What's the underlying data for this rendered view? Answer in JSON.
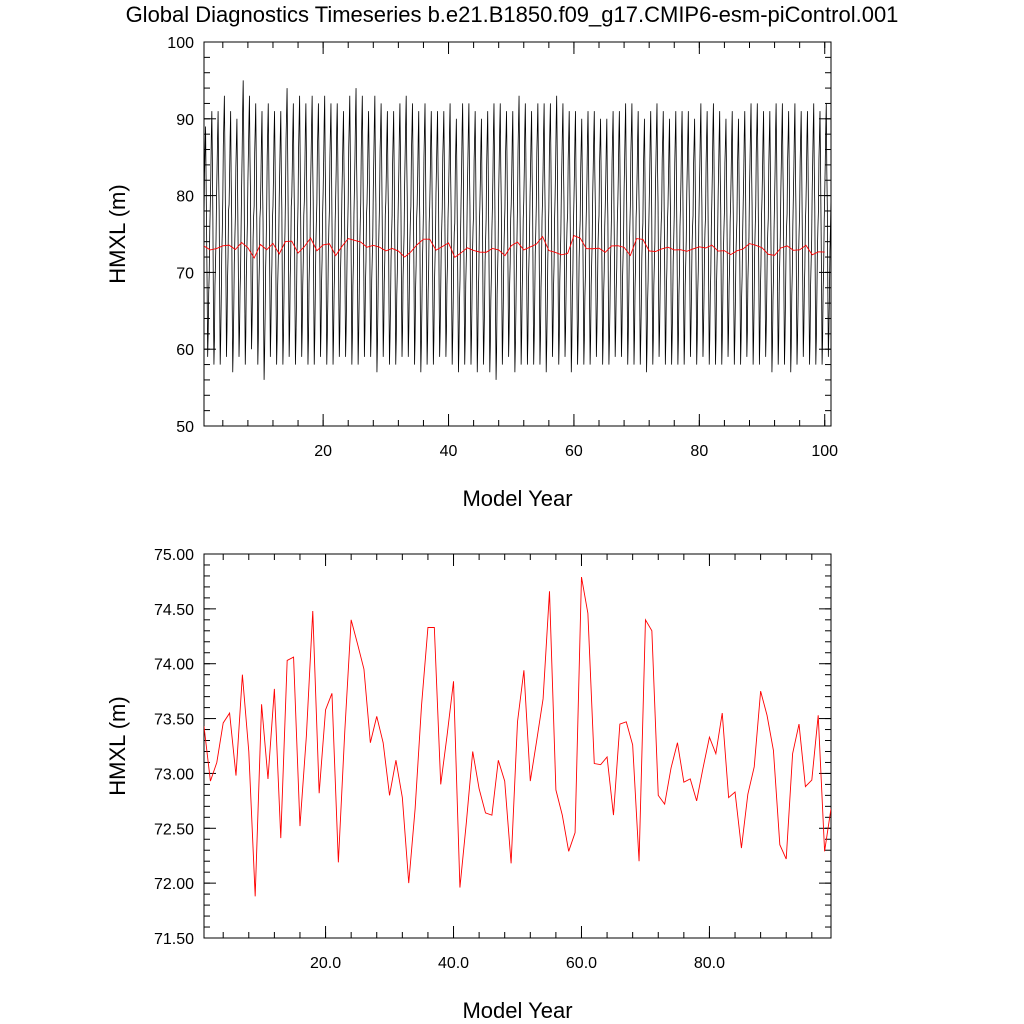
{
  "title": "Global Diagnostics Timeseries b.e21.B1850.f09_g17.CMIP6-esm-piControl.001",
  "colors": {
    "monthly": "#000000",
    "annual": "#ff0000"
  },
  "chart_data": [
    {
      "type": "line",
      "name": "monthly-and-annual-hmxl",
      "xlabel": "Model Year",
      "ylabel": "HMXL (m)",
      "xlim": [
        1,
        101
      ],
      "ylim": [
        50,
        100
      ],
      "xticks": [
        20,
        40,
        60,
        80,
        100
      ],
      "xtick_labels": [
        "20",
        "40",
        "60",
        "80",
        "100"
      ],
      "yticks": [
        50,
        60,
        70,
        80,
        90,
        100
      ],
      "ytick_labels": [
        "50",
        "60",
        "70",
        "80",
        "90",
        "100"
      ],
      "series": [
        {
          "role": "monthly",
          "x_start": 1.0,
          "x_step": 0.08333,
          "annual_max": [
            89,
            91,
            91,
            93,
            91,
            90,
            95,
            93,
            92,
            91,
            92,
            91,
            91,
            94,
            92,
            93,
            92,
            93,
            92,
            93,
            92,
            92,
            91,
            93,
            94,
            93,
            91,
            93,
            92,
            91,
            91,
            92,
            93,
            92,
            91,
            92,
            91,
            91,
            91,
            92,
            90,
            92,
            92,
            91,
            90,
            91,
            92,
            92,
            91,
            91,
            93,
            92,
            91,
            92,
            92,
            92,
            93,
            92,
            91,
            91,
            90,
            91,
            91,
            90,
            90,
            91,
            91,
            92,
            92,
            91,
            90,
            91,
            92,
            91,
            90,
            91,
            91,
            91,
            90,
            92,
            91,
            92,
            91,
            90,
            91,
            90,
            91,
            92,
            92,
            91,
            91,
            92,
            92,
            91,
            92,
            91,
            91,
            92,
            91,
            92,
            94
          ],
          "annual_min": [
            59,
            58,
            58,
            59,
            57,
            59,
            58,
            60,
            58,
            56,
            59,
            58,
            58,
            59,
            58,
            59,
            58,
            58,
            59,
            58,
            58,
            59,
            59,
            58,
            58,
            59,
            59,
            57,
            59,
            58,
            58,
            59,
            59,
            58,
            57,
            58,
            58,
            59,
            59,
            58,
            57,
            58,
            58,
            57,
            58,
            57,
            56,
            58,
            59,
            57,
            58,
            58,
            58,
            58,
            57,
            59,
            58,
            59,
            57,
            58,
            58,
            58,
            59,
            58,
            58,
            59,
            59,
            58,
            58,
            58,
            57,
            58,
            59,
            58,
            58,
            58,
            58,
            59,
            58,
            59,
            58,
            58,
            58,
            59,
            58,
            58,
            59,
            58,
            58,
            59,
            57,
            58,
            58,
            57,
            58,
            59,
            58,
            58,
            58,
            59,
            59
          ]
        },
        {
          "role": "annual",
          "x": [
            1,
            2,
            3,
            4,
            5,
            6,
            7,
            8,
            9,
            10,
            11,
            12,
            13,
            14,
            15,
            16,
            17,
            18,
            19,
            20,
            21,
            22,
            23,
            24,
            25,
            26,
            27,
            28,
            29,
            30,
            31,
            32,
            33,
            34,
            35,
            36,
            37,
            38,
            39,
            40,
            41,
            42,
            43,
            44,
            45,
            46,
            47,
            48,
            49,
            50,
            51,
            52,
            53,
            54,
            55,
            56,
            57,
            58,
            59,
            60,
            61,
            62,
            63,
            64,
            65,
            66,
            67,
            68,
            69,
            70,
            71,
            72,
            73,
            74,
            75,
            76,
            77,
            78,
            79,
            80,
            81,
            82,
            83,
            84,
            85,
            86,
            87,
            88,
            89,
            90,
            91,
            92,
            93,
            94,
            95,
            96,
            97,
            98,
            99,
            100
          ],
          "values": [
            73.43,
            72.93,
            73.1,
            73.46,
            73.55,
            72.98,
            73.9,
            73.2,
            71.88,
            73.63,
            72.95,
            73.77,
            72.41,
            74.03,
            74.06,
            72.52,
            73.34,
            74.48,
            72.82,
            73.58,
            73.73,
            72.19,
            73.38,
            74.4,
            74.18,
            73.95,
            73.28,
            73.52,
            73.28,
            72.8,
            73.12,
            72.78,
            72.0,
            72.68,
            73.62,
            74.33,
            74.33,
            72.9,
            73.35,
            73.84,
            71.96,
            72.55,
            73.2,
            72.86,
            72.64,
            72.62,
            73.12,
            72.93,
            72.18,
            73.47,
            73.94,
            72.93,
            73.3,
            73.68,
            74.66,
            72.85,
            72.62,
            72.29,
            72.46,
            74.79,
            74.46,
            73.09,
            73.08,
            73.15,
            72.62,
            73.45,
            73.47,
            73.26,
            72.2,
            74.4,
            74.3,
            72.8,
            72.72,
            73.05,
            73.28,
            72.92,
            72.95,
            72.75,
            73.05,
            73.33,
            73.18,
            73.55,
            72.78,
            72.83,
            72.32,
            72.81,
            73.06,
            73.75,
            73.53,
            73.21,
            72.35,
            72.22,
            73.18,
            73.45,
            72.88,
            72.94,
            73.53,
            72.29,
            72.68,
            72.65
          ]
        }
      ]
    },
    {
      "type": "line",
      "name": "annual-hmxl",
      "xlabel": "Model Year",
      "ylabel": "HMXL (m)",
      "xlim": [
        1,
        99
      ],
      "ylim": [
        71.5,
        75.0
      ],
      "xticks": [
        20,
        40,
        60,
        80
      ],
      "xtick_labels": [
        "20.0",
        "40.0",
        "60.0",
        "80.0"
      ],
      "yticks": [
        71.5,
        72.0,
        72.5,
        73.0,
        73.5,
        74.0,
        74.5,
        75.0
      ],
      "ytick_labels": [
        "71.50",
        "72.00",
        "72.50",
        "73.00",
        "73.50",
        "74.00",
        "74.50",
        "75.00"
      ],
      "series": [
        {
          "role": "annual",
          "x": [
            1,
            2,
            3,
            4,
            5,
            6,
            7,
            8,
            9,
            10,
            11,
            12,
            13,
            14,
            15,
            16,
            17,
            18,
            19,
            20,
            21,
            22,
            23,
            24,
            25,
            26,
            27,
            28,
            29,
            30,
            31,
            32,
            33,
            34,
            35,
            36,
            37,
            38,
            39,
            40,
            41,
            42,
            43,
            44,
            45,
            46,
            47,
            48,
            49,
            50,
            51,
            52,
            53,
            54,
            55,
            56,
            57,
            58,
            59,
            60,
            61,
            62,
            63,
            64,
            65,
            66,
            67,
            68,
            69,
            70,
            71,
            72,
            73,
            74,
            75,
            76,
            77,
            78,
            79,
            80,
            81,
            82,
            83,
            84,
            85,
            86,
            87,
            88,
            89,
            90,
            91,
            92,
            93,
            94,
            95,
            96,
            97,
            98,
            99
          ],
          "values": [
            73.43,
            72.93,
            73.1,
            73.46,
            73.55,
            72.98,
            73.9,
            73.2,
            71.88,
            73.63,
            72.95,
            73.77,
            72.41,
            74.03,
            74.06,
            72.52,
            73.34,
            74.48,
            72.82,
            73.58,
            73.73,
            72.19,
            73.38,
            74.4,
            74.18,
            73.95,
            73.28,
            73.52,
            73.28,
            72.8,
            73.12,
            72.78,
            72.0,
            72.68,
            73.62,
            74.33,
            74.33,
            72.9,
            73.35,
            73.84,
            71.96,
            72.55,
            73.2,
            72.86,
            72.64,
            72.62,
            73.12,
            72.93,
            72.18,
            73.47,
            73.94,
            72.93,
            73.3,
            73.68,
            74.66,
            72.85,
            72.62,
            72.29,
            72.46,
            74.79,
            74.46,
            73.09,
            73.08,
            73.15,
            72.62,
            73.45,
            73.47,
            73.26,
            72.2,
            74.4,
            74.3,
            72.8,
            72.72,
            73.05,
            73.28,
            72.92,
            72.95,
            72.75,
            73.05,
            73.33,
            73.18,
            73.55,
            72.78,
            72.83,
            72.32,
            72.81,
            73.06,
            73.75,
            73.53,
            73.21,
            72.35,
            72.22,
            73.18,
            73.45,
            72.88,
            72.94,
            73.53,
            72.29,
            72.68
          ]
        }
      ]
    }
  ]
}
